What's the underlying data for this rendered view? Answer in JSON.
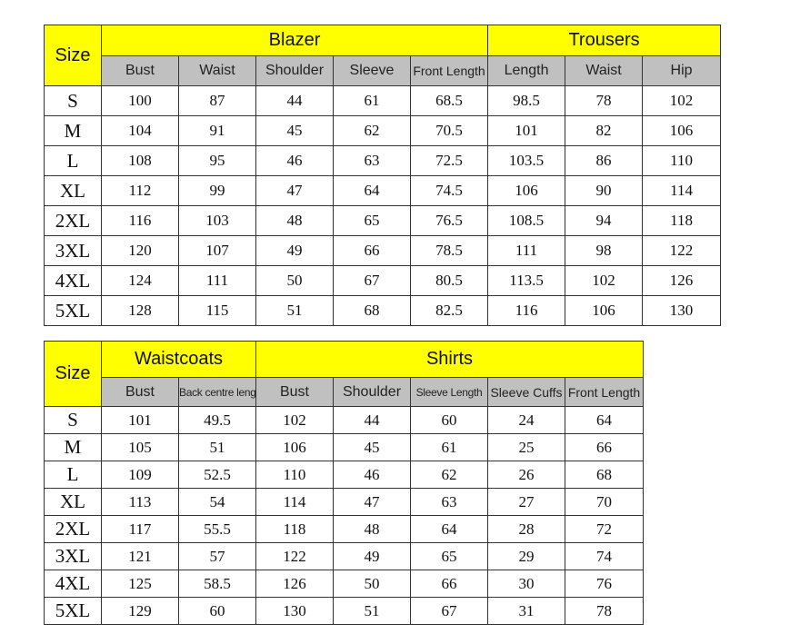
{
  "table1": {
    "size_label": "Size",
    "groups": [
      "Blazer",
      "Trousers"
    ],
    "columns": [
      "Bust",
      "Waist",
      "Shoulder",
      "Sleeve",
      "Front Length",
      "Length",
      "Waist",
      "Hip"
    ],
    "rows": [
      [
        "S",
        "100",
        "87",
        "44",
        "61",
        "68.5",
        "98.5",
        "78",
        "102"
      ],
      [
        "M",
        "104",
        "91",
        "45",
        "62",
        "70.5",
        "101",
        "82",
        "106"
      ],
      [
        "L",
        "108",
        "95",
        "46",
        "63",
        "72.5",
        "103.5",
        "86",
        "110"
      ],
      [
        "XL",
        "112",
        "99",
        "47",
        "64",
        "74.5",
        "106",
        "90",
        "114"
      ],
      [
        "2XL",
        "116",
        "103",
        "48",
        "65",
        "76.5",
        "108.5",
        "94",
        "118"
      ],
      [
        "3XL",
        "120",
        "107",
        "49",
        "66",
        "78.5",
        "111",
        "98",
        "122"
      ],
      [
        "4XL",
        "124",
        "111",
        "50",
        "67",
        "80.5",
        "113.5",
        "102",
        "126"
      ],
      [
        "5XL",
        "128",
        "115",
        "51",
        "68",
        "82.5",
        "116",
        "106",
        "130"
      ]
    ]
  },
  "table2": {
    "size_label": "Size",
    "groups": [
      "Waistcoats",
      "Shirts"
    ],
    "columns": [
      "Bust",
      "Back centre length",
      "Bust",
      "Shoulder",
      "Sleeve Length",
      "Sleeve Cuffs",
      "Front Length"
    ],
    "rows": [
      [
        "S",
        "101",
        "49.5",
        "102",
        "44",
        "60",
        "24",
        "64"
      ],
      [
        "M",
        "105",
        "51",
        "106",
        "45",
        "61",
        "25",
        "66"
      ],
      [
        "L",
        "109",
        "52.5",
        "110",
        "46",
        "62",
        "26",
        "68"
      ],
      [
        "XL",
        "113",
        "54",
        "114",
        "47",
        "63",
        "27",
        "70"
      ],
      [
        "2XL",
        "117",
        "55.5",
        "118",
        "48",
        "64",
        "28",
        "72"
      ],
      [
        "3XL",
        "121",
        "57",
        "122",
        "49",
        "65",
        "29",
        "74"
      ],
      [
        "4XL",
        "125",
        "58.5",
        "126",
        "50",
        "66",
        "30",
        "76"
      ],
      [
        "5XL",
        "129",
        "60",
        "130",
        "51",
        "67",
        "31",
        "78"
      ]
    ]
  },
  "colors": {
    "header_yellow": "#ffff00",
    "subheader_gray": "#c0c0c0"
  }
}
